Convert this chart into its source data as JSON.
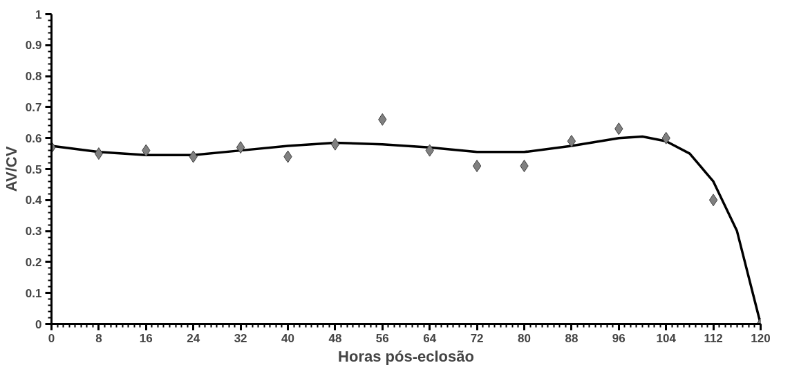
{
  "chart_data": {
    "type": "scatter",
    "xlabel": "Horas pós-eclosão",
    "ylabel": "AV/CV",
    "xlim": [
      0,
      120
    ],
    "xticks": [
      0,
      8,
      16,
      24,
      32,
      40,
      48,
      56,
      64,
      72,
      80,
      88,
      96,
      104,
      112,
      120
    ],
    "ylim": [
      0,
      1
    ],
    "yticks": [
      0,
      0.1,
      0.2,
      0.3,
      0.4,
      0.5,
      0.6,
      0.7,
      0.8,
      0.9,
      1
    ],
    "grid": false,
    "marker": "diamond",
    "series": [
      {
        "color": "#808080",
        "x": [
          0,
          8,
          16,
          24,
          32,
          40,
          48,
          56,
          64,
          72,
          80,
          88,
          96,
          104,
          112,
          120
        ],
        "values": [
          0.57,
          0.55,
          0.56,
          0.54,
          0.57,
          0.54,
          0.58,
          0.66,
          0.56,
          0.51,
          0.51,
          0.59,
          0.63,
          0.6,
          0.4,
          0
        ]
      },
      {
        "type": "line",
        "color": "#000000",
        "marker": "none",
        "line_style": "solid",
        "x": [
          0,
          8,
          16,
          24,
          32,
          40,
          48,
          56,
          64,
          72,
          80,
          88,
          96,
          100,
          104,
          108,
          112,
          116,
          120
        ],
        "values": [
          0.575,
          0.555,
          0.545,
          0.545,
          0.56,
          0.575,
          0.585,
          0.58,
          0.57,
          0.555,
          0.555,
          0.575,
          0.6,
          0.605,
          0.59,
          0.55,
          0.46,
          0.3,
          0.0
        ]
      }
    ]
  }
}
